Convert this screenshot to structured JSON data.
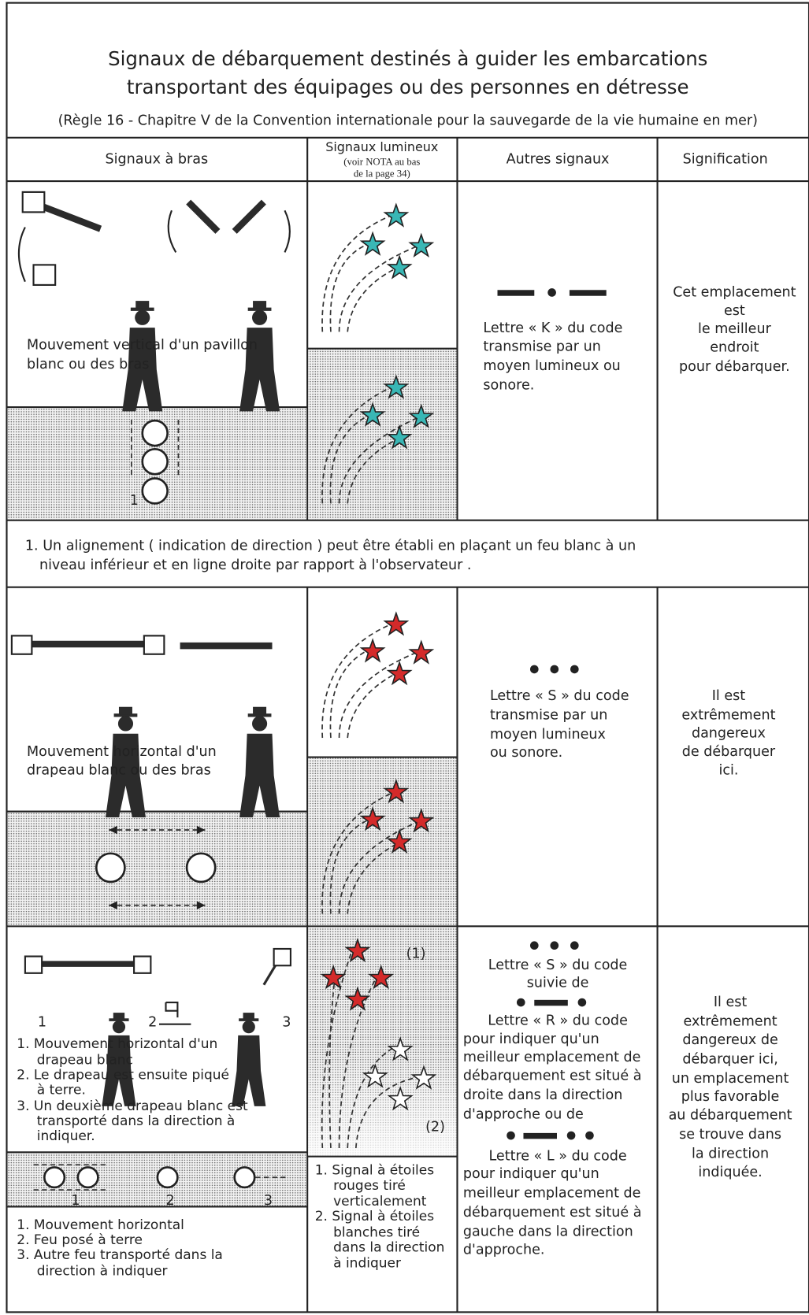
{
  "header": {
    "title": [
      "Signaux de débarquement destinés à guider les embarcations",
      "transportant des équipages ou des personnes en détresse"
    ],
    "subtitle": "(Règle 16 - Chapitre V de la Convention internationale pour la sauvegarde de la vie humaine en mer)"
  },
  "columns": [
    {
      "label": "Signaux à bras"
    },
    {
      "label": "Signaux lumineux",
      "note": [
        "(voir NOTA au bas",
        "de la page 34)"
      ]
    },
    {
      "label": "Autres signaux"
    },
    {
      "label": "Signification"
    }
  ],
  "sections": [
    {
      "arm_caption": [
        "Mouvement vertical d'un pavillon",
        "blanc ou des bras"
      ],
      "fire_label": "1",
      "other": [
        "Lettre « K » du code",
        "transmise par un",
        "moyen lumineux ou",
        "sonore."
      ],
      "meaning": [
        "Cet emplacement",
        "est",
        "le meilleur",
        "endroit",
        "pour débarquer."
      ]
    },
    {
      "arm_caption": [
        "Mouvement horizontal d'un",
        "drapeau blanc ou des bras"
      ],
      "other": [
        "Lettre « S » du code",
        "transmise par un",
        "moyen lumineux",
        "ou sonore."
      ],
      "meaning": [
        "Il est",
        "extrêmement",
        "dangereux",
        "de débarquer",
        "ici."
      ]
    },
    {
      "arm_labels": [
        "1",
        "2",
        "3"
      ],
      "arm_caption": [
        "1. Mouvement horizontal d'un",
        "drapeau blanc",
        "2. Le drapeau est ensuite piqué",
        "à terre.",
        "3. Un deuxième drapeau blanc est",
        "transporté dans la direction à",
        "indiquer."
      ],
      "light_labels": [
        "(1)",
        "(2)"
      ],
      "light_caption": [
        "1. Signal à étoiles",
        "rouges tiré",
        "verticalement",
        "2. Signal à étoiles",
        "blanches tiré",
        "dans la direction",
        "à indiquer"
      ],
      "fire_labels": [
        "1",
        "2",
        "3"
      ],
      "fire_caption": [
        "1. Mouvement horizontal",
        "2. Feu posé à terre",
        "3. Autre feu transporté dans la",
        "direction à indiquer"
      ],
      "other": [
        "Lettre « S » du code",
        "suivie de",
        "Lettre « R » du code",
        "pour indiquer qu'un",
        "meilleur emplacement de",
        "débarquement est situé à",
        "droite dans la direction",
        "d'approche ou de",
        "Lettre « L » du code",
        "pour indiquer qu'un",
        "meilleur emplacement de",
        "débarquement est situé à",
        "gauche dans la direction",
        "d'approche."
      ],
      "meaning": [
        "Il est",
        "extrêmement",
        "dangereux de",
        "débarquer ici,",
        "un emplacement",
        "plus favorable",
        "au débarquement",
        "se trouve dans",
        "la direction",
        "indiquée."
      ]
    }
  ],
  "note": [
    "1. Un alignement ( indication de direction ) peut être établi en plaçant un feu blanc à un",
    "niveau inférieur et en ligne droite par rapport à l'observateur ."
  ]
}
